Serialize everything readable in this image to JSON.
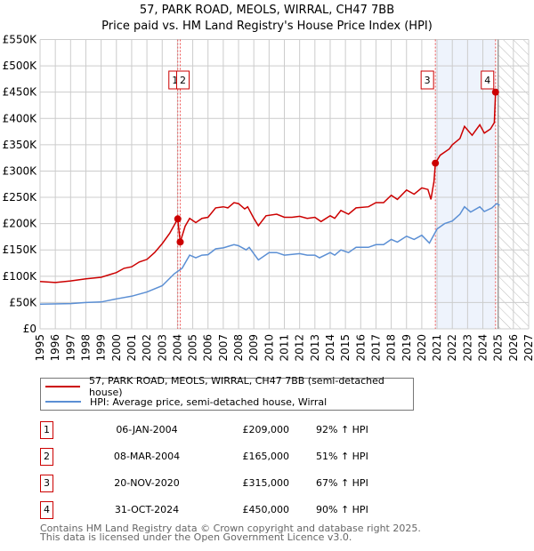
{
  "header": {
    "title": "57, PARK ROAD, MEOLS, WIRRAL, CH47 7BB",
    "subtitle": "Price paid vs. HM Land Registry's House Price Index (HPI)"
  },
  "chart_data": {
    "type": "line",
    "title": "57, PARK ROAD, MEOLS, WIRRAL, CH47 7BB",
    "subtitle": "Price paid vs. HM Land Registry's House Price Index (HPI)",
    "xlim": [
      1995,
      2027
    ],
    "ylim": [
      0,
      550000
    ],
    "x_ticks": [
      "1995",
      "1996",
      "1997",
      "1998",
      "1999",
      "2000",
      "2001",
      "2002",
      "2003",
      "2004",
      "2005",
      "2006",
      "2007",
      "2008",
      "2009",
      "2010",
      "2011",
      "2012",
      "2013",
      "2014",
      "2015",
      "2016",
      "2017",
      "2018",
      "2019",
      "2020",
      "2021",
      "2022",
      "2023",
      "2024",
      "2025",
      "2026",
      "2027"
    ],
    "y_ticks": [
      {
        "v": 0,
        "label": "£0"
      },
      {
        "v": 50000,
        "label": "£50K"
      },
      {
        "v": 100000,
        "label": "£100K"
      },
      {
        "v": 150000,
        "label": "£150K"
      },
      {
        "v": 200000,
        "label": "£200K"
      },
      {
        "v": 250000,
        "label": "£250K"
      },
      {
        "v": 300000,
        "label": "£300K"
      },
      {
        "v": 350000,
        "label": "£350K"
      },
      {
        "v": 400000,
        "label": "£400K"
      },
      {
        "v": 450000,
        "label": "£450K"
      },
      {
        "v": 500000,
        "label": "£500K"
      },
      {
        "v": 550000,
        "label": "£550K"
      }
    ],
    "grid": true,
    "shaded_range": [
      2020.89,
      2024.83
    ],
    "forecast_hatch_from": 2025.0,
    "series": [
      {
        "name": "57, PARK ROAD, MEOLS, WIRRAL, CH47 7BB (semi-detached house)",
        "color": "#cc0000",
        "x": [
          1995,
          1996,
          1997,
          1998,
          1999,
          2000,
          2000.5,
          2001,
          2001.5,
          2002,
          2002.5,
          2003,
          2003.5,
          2004.02,
          2004.18,
          2004.5,
          2004.8,
          2005.2,
          2005.6,
          2006,
          2006.5,
          2007,
          2007.3,
          2007.7,
          2008,
          2008.4,
          2008.6,
          2009,
          2009.3,
          2009.8,
          2010.5,
          2011,
          2011.5,
          2012,
          2012.5,
          2013,
          2013.4,
          2014,
          2014.3,
          2014.7,
          2015.2,
          2015.7,
          2016.5,
          2017,
          2017.5,
          2018,
          2018.4,
          2019,
          2019.5,
          2020,
          2020.4,
          2020.6,
          2020.8,
          2020.89,
          2021.2,
          2021.8,
          2022,
          2022.5,
          2022.8,
          2023.3,
          2023.8,
          2024.1,
          2024.5,
          2024.75,
          2024.83,
          2025
        ],
        "values": [
          90000,
          88000,
          91000,
          95000,
          98000,
          107000,
          115000,
          118000,
          127000,
          132000,
          145000,
          162000,
          182000,
          209000,
          165000,
          195000,
          210000,
          202000,
          210000,
          212000,
          230000,
          232000,
          230000,
          240000,
          238000,
          228000,
          232000,
          210000,
          196000,
          215000,
          218000,
          212000,
          212000,
          214000,
          210000,
          212000,
          204000,
          215000,
          210000,
          225000,
          218000,
          230000,
          232000,
          240000,
          240000,
          254000,
          246000,
          264000,
          256000,
          268000,
          265000,
          246000,
          280000,
          315000,
          330000,
          342000,
          350000,
          362000,
          385000,
          368000,
          388000,
          372000,
          380000,
          392000,
          450000,
          445000
        ]
      },
      {
        "name": "HPI: Average price, semi-detached house, Wirral",
        "color": "#5b8fd4",
        "x": [
          1995,
          1997,
          1998,
          1999,
          2000,
          2001,
          2002,
          2003,
          2003.8,
          2004.3,
          2004.8,
          2005.2,
          2005.6,
          2006,
          2006.5,
          2007,
          2007.7,
          2008,
          2008.5,
          2008.7,
          2009.3,
          2010,
          2010.5,
          2011,
          2012,
          2012.5,
          2013,
          2013.3,
          2014,
          2014.3,
          2014.7,
          2015.2,
          2015.7,
          2016.5,
          2017,
          2017.5,
          2018,
          2018.4,
          2019,
          2019.5,
          2020,
          2020.5,
          2021,
          2021.5,
          2022,
          2022.5,
          2022.8,
          2023.2,
          2023.8,
          2024.1,
          2024.6,
          2024.9,
          2025.1
        ],
        "values": [
          47000,
          48000,
          50000,
          51000,
          57000,
          62000,
          70000,
          82000,
          105000,
          115000,
          140000,
          135000,
          140000,
          141000,
          152000,
          154000,
          160000,
          158000,
          150000,
          155000,
          131000,
          145000,
          145000,
          140000,
          143000,
          140000,
          140000,
          135000,
          145000,
          140000,
          150000,
          145000,
          155000,
          155000,
          160000,
          160000,
          170000,
          165000,
          176000,
          170000,
          178000,
          163000,
          190000,
          200000,
          205000,
          218000,
          232000,
          222000,
          232000,
          223000,
          230000,
          238000,
          235000
        ]
      }
    ],
    "sales": [
      {
        "label": "1",
        "x": 2004.02,
        "value": 209000,
        "date": "06-JAN-2004",
        "price": "£209,000",
        "hpi": "92% ↑ HPI"
      },
      {
        "label": "2",
        "x": 2004.18,
        "value": 165000,
        "date": "08-MAR-2004",
        "price": "£165,000",
        "hpi": "51% ↑ HPI"
      },
      {
        "label": "3",
        "x": 2020.89,
        "value": 315000,
        "date": "20-NOV-2020",
        "price": "£315,000",
        "hpi": "67% ↑ HPI"
      },
      {
        "label": "4",
        "x": 2024.83,
        "value": 450000,
        "date": "31-OCT-2024",
        "price": "£450,000",
        "hpi": "90% ↑ HPI"
      }
    ]
  },
  "legend": {
    "property": "57, PARK ROAD, MEOLS, WIRRAL, CH47 7BB (semi-detached house)",
    "hpi": "HPI: Average price, semi-detached house, Wirral"
  },
  "footer": {
    "line1": "Contains HM Land Registry data © Crown copyright and database right 2025.",
    "line2": "This data is licensed under the Open Government Licence v3.0."
  }
}
